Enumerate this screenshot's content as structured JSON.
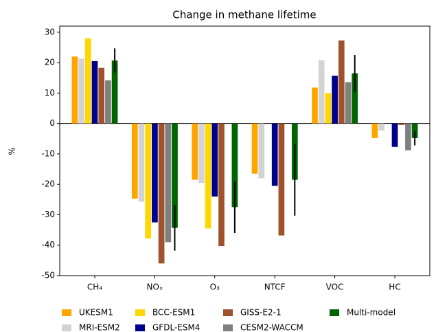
{
  "chart_data": {
    "type": "bar",
    "title": "Change in methane lifetime",
    "y_label": "%",
    "categories": [
      "CH₄",
      "NOₓ",
      "O₃",
      "NTCF",
      "VOC",
      "HC"
    ],
    "series": [
      {
        "name": "UKESM1",
        "color": "#ffa500",
        "values": [
          22,
          -24.7,
          -18.5,
          -16.5,
          11.8,
          -4.8
        ]
      },
      {
        "name": "MRI-ESM2",
        "color": "#d3d3d3",
        "values": [
          21.3,
          -25.7,
          -19.5,
          -18,
          20.8,
          -2.3
        ]
      },
      {
        "name": "BCC-ESM1",
        "color": "#ffd700",
        "values": [
          28,
          -37.8,
          -34.5,
          null,
          10,
          null
        ]
      },
      {
        "name": "GFDL-ESM4",
        "color": "#00008b",
        "values": [
          20.5,
          -32.5,
          -24,
          -20.5,
          15.7,
          -7.7
        ]
      },
      {
        "name": "GISS-E2-1",
        "color": "#a0522d",
        "values": [
          18.3,
          -46,
          -40.3,
          -36.8,
          27.3,
          -0.5
        ]
      },
      {
        "name": "CESM2-WACCM",
        "color": "#808080",
        "values": [
          14.2,
          -39,
          null,
          null,
          13.6,
          -8.8
        ]
      },
      {
        "name": "Multi-model",
        "color": "#006400",
        "values": [
          20.7,
          -34.3,
          -27.5,
          -18.5,
          16.5,
          -4.8
        ],
        "errors": [
          4,
          7.5,
          8.5,
          11.8,
          6,
          2.4
        ]
      }
    ],
    "ylim": [
      -50,
      32
    ],
    "yticks": [
      -50,
      -40,
      -30,
      -20,
      -10,
      0,
      10,
      20,
      30
    ],
    "grid": false,
    "legend": "bottom"
  }
}
